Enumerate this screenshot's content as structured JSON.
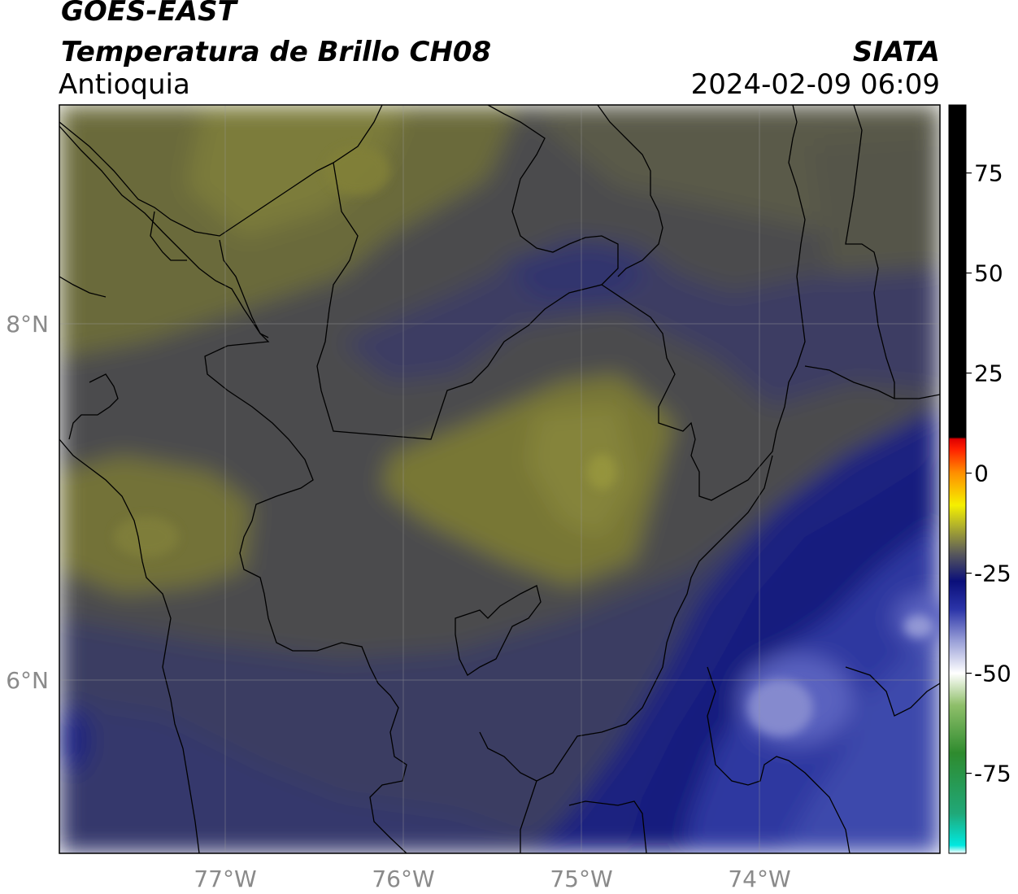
{
  "header": {
    "satellite": "GOES-EAST",
    "product": "Temperatura de Brillo CH08",
    "region": "Antioquia",
    "agency": "SIATA",
    "datetime": "2024-02-09 06:09"
  },
  "map": {
    "lat_ticks": [
      {
        "label": "8°N",
        "value": 8
      },
      {
        "label": "6°N",
        "value": 6
      }
    ],
    "lon_ticks": [
      {
        "label": "77°W",
        "value": -77
      },
      {
        "label": "76°W",
        "value": -76
      },
      {
        "label": "75°W",
        "value": -75
      },
      {
        "label": "74°W",
        "value": -74
      }
    ],
    "extent": {
      "lon_min": -77.94,
      "lon_max": -73.0,
      "lat_min": 5.0,
      "lat_max": 9.23
    },
    "gridlines": true,
    "palette": {
      "olive": "#6b6a3a",
      "olive_light": "#8a8a3a",
      "gray_dark": "#4b4b4e",
      "navy_gray": "#3c3e63",
      "navy": "#2b3075",
      "deep_blue": "#141a7e",
      "blue": "#3a44a6",
      "lavender": "#8a8fd0"
    }
  },
  "colorbar": {
    "ticks": [
      {
        "label": "75",
        "value": 75
      },
      {
        "label": "50",
        "value": 50
      },
      {
        "label": "25",
        "value": 25
      },
      {
        "label": "0",
        "value": 0
      },
      {
        "label": "-25",
        "value": -25
      },
      {
        "label": "-50",
        "value": -50
      },
      {
        "label": "-75",
        "value": -75
      }
    ],
    "range": [
      -95,
      92
    ],
    "stops": [
      {
        "value": -95,
        "color": "#ffffff"
      },
      {
        "value": -93,
        "color": "#00e8e0"
      },
      {
        "value": -85,
        "color": "#20a878"
      },
      {
        "value": -70,
        "color": "#2e8b2e"
      },
      {
        "value": -58,
        "color": "#8fbf6a"
      },
      {
        "value": -50,
        "color": "#ffffff"
      },
      {
        "value": -42,
        "color": "#9aa0d8"
      },
      {
        "value": -34,
        "color": "#2b34a8"
      },
      {
        "value": -27,
        "color": "#0a0f7a"
      },
      {
        "value": -20,
        "color": "#5a5a5a"
      },
      {
        "value": -13,
        "color": "#b3b32a"
      },
      {
        "value": -8,
        "color": "#f5f000"
      },
      {
        "value": 0,
        "color": "#ff9000"
      },
      {
        "value": 6,
        "color": "#ff2000"
      },
      {
        "value": 8.5,
        "color": "#e00000"
      },
      {
        "value": 9,
        "color": "#000000"
      },
      {
        "value": 92,
        "color": "#000000"
      }
    ]
  }
}
